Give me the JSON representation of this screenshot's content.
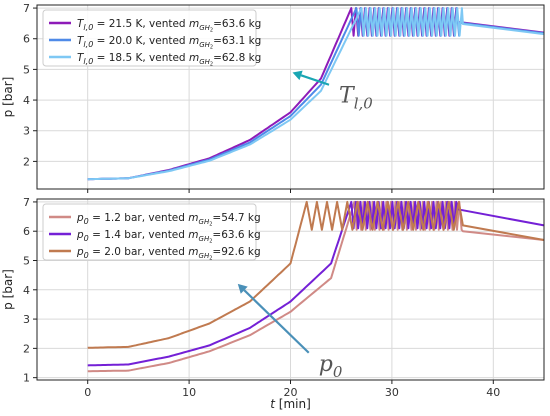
{
  "chart_data": [
    {
      "type": "line",
      "ylabel": "p [bar]",
      "xlabel": "",
      "xlim": [
        -5,
        45
      ],
      "ylim": [
        1.1,
        7.1
      ],
      "xticks": [
        0,
        10,
        20,
        30,
        40
      ],
      "yticks": [
        2,
        3,
        4,
        5,
        6,
        7
      ],
      "grid": true,
      "legend_position": "top-left",
      "annotation": {
        "text": "T",
        "subscript": "l,0",
        "tail": [
          23.8,
          4.5
        ],
        "head": [
          20.2,
          4.9
        ]
      },
      "series": [
        {
          "name": "T_{l,0} = 21.5 K, vented m_{GH2}=63.6 kg",
          "legend_label": "= 21.5 K, vented",
          "legend_value": "=63.6 kg",
          "legend_sym": "T",
          "legend_sub": "l,0",
          "color": "#8e1bb8",
          "x": [
            0,
            4,
            8,
            12,
            16,
            20,
            23,
            26.0,
            36.5,
            45
          ],
          "y": [
            1.42,
            1.45,
            1.72,
            2.1,
            2.7,
            3.6,
            4.7,
            7.0,
            6.55,
            6.2
          ],
          "oscillation": {
            "x_start": 26.0,
            "x_end": 36.5,
            "low": 6.1,
            "high": 7.0,
            "period": 0.45
          }
        },
        {
          "name": "T_{l,0} = 20.0 K, vented m_{GH2}=63.1 kg",
          "legend_label": "= 20.0 K, vented",
          "legend_value": "=63.1 kg",
          "legend_sym": "T",
          "legend_sub": "l,0",
          "color": "#4f8ae8",
          "x": [
            0,
            4,
            8,
            12,
            16,
            20,
            23,
            26.5,
            36.7,
            45
          ],
          "y": [
            1.42,
            1.45,
            1.7,
            2.06,
            2.62,
            3.48,
            4.5,
            7.0,
            6.52,
            6.18
          ],
          "oscillation": {
            "x_start": 26.5,
            "x_end": 36.7,
            "low": 6.1,
            "high": 7.0,
            "period": 0.45
          }
        },
        {
          "name": "T_{l,0} = 18.5 K, vented m_{GH2}=62.8 kg",
          "legend_label": "= 18.5 K, vented",
          "legend_value": "=62.8 kg",
          "legend_sym": "T",
          "legend_sub": "l,0",
          "color": "#7ec8f4",
          "x": [
            0,
            4,
            8,
            12,
            16,
            20,
            23,
            27.0,
            37.0,
            45
          ],
          "y": [
            1.42,
            1.45,
            1.68,
            2.02,
            2.55,
            3.36,
            4.3,
            7.0,
            6.48,
            6.15
          ],
          "oscillation": {
            "x_start": 27.0,
            "x_end": 37.0,
            "low": 6.1,
            "high": 7.0,
            "period": 0.45
          }
        }
      ]
    },
    {
      "type": "line",
      "ylabel": "p [bar]",
      "xlabel": "t [min]",
      "xlim": [
        -5,
        45
      ],
      "ylim": [
        0.92,
        7.1
      ],
      "xticks": [
        0,
        10,
        20,
        30,
        40
      ],
      "xtick_labels": [
        "0",
        "10",
        "20",
        "30",
        "40"
      ],
      "yticks": [
        1,
        2,
        3,
        4,
        5,
        6,
        7
      ],
      "grid": true,
      "legend_position": "top-left",
      "annotation": {
        "text": "p",
        "subscript": "0",
        "tail": [
          21.8,
          1.85
        ],
        "head": [
          14.8,
          4.2
        ]
      },
      "series": [
        {
          "name": "p_0 = 1.2 bar, vented m_{GH2}=54.7 kg",
          "legend_label": "= 1.2 bar, vented",
          "legend_value": "=54.7 kg",
          "legend_sym": "p",
          "legend_sub": "0",
          "color": "#d08a86",
          "x": [
            0,
            4,
            8,
            12,
            16,
            20,
            24,
            26.3,
            37.0,
            45
          ],
          "y": [
            1.22,
            1.24,
            1.5,
            1.9,
            2.45,
            3.25,
            4.4,
            7.0,
            6.0,
            5.7
          ],
          "oscillation": {
            "x_start": 26.3,
            "x_end": 37.0,
            "low": 6.05,
            "high": 7.0,
            "period": 0.45
          }
        },
        {
          "name": "p_0 = 1.4 bar, vented m_{GH2}=63.6 kg",
          "legend_label": "= 1.4 bar, vented",
          "legend_value": "=63.6 kg",
          "legend_sym": "p",
          "legend_sub": "0",
          "color": "#7420d6",
          "x": [
            0,
            4,
            8,
            12,
            16,
            20,
            24,
            26.0,
            36.5,
            45
          ],
          "y": [
            1.42,
            1.45,
            1.72,
            2.1,
            2.7,
            3.6,
            4.9,
            7.0,
            6.75,
            6.2
          ],
          "oscillation": {
            "x_start": 26.0,
            "x_end": 36.5,
            "low": 6.1,
            "high": 7.0,
            "period": 0.45
          }
        },
        {
          "name": "p_0 = 2.0 bar, vented m_{GH2}=92.6 kg",
          "legend_label": "= 2.0 bar, vented",
          "legend_value": "=92.6 kg",
          "legend_sym": "p",
          "legend_sub": "0",
          "color": "#c07a50",
          "x": [
            0,
            4,
            8,
            12,
            16,
            20,
            21.6,
            37.0,
            45
          ],
          "y": [
            2.02,
            2.05,
            2.35,
            2.85,
            3.6,
            4.9,
            7.0,
            6.2,
            5.7
          ],
          "oscillation": {
            "x_start": 21.6,
            "x_end": 37.0,
            "low": 6.05,
            "high": 7.0,
            "period": 1.0
          }
        }
      ]
    }
  ]
}
